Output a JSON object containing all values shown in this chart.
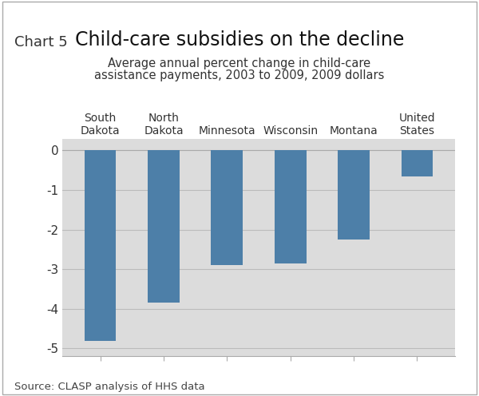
{
  "categories": [
    "South\nDakota",
    "North\nDakota",
    "Minnesota",
    "Wisconsin",
    "Montana",
    "United\nStates"
  ],
  "values": [
    -4.8,
    -3.85,
    -2.9,
    -2.85,
    -2.25,
    -0.65
  ],
  "bar_color": "#4d7fa8",
  "title": "Child-care subsidies on the decline",
  "chart_label": "Chart 5",
  "subtitle1": "Average annual percent change in child-care",
  "subtitle2": "assistance payments, 2003 to 2009, 2009 dollars",
  "source": "Source: CLASP analysis of HHS data",
  "ylim": [
    -5.2,
    0.3
  ],
  "yticks": [
    0,
    -1,
    -2,
    -3,
    -4,
    -5
  ],
  "bg_color": "#dcdcdc",
  "outer_bg": "#ffffff",
  "grid_color": "#bbbbbb",
  "bar_width": 0.5,
  "title_fontsize": 17,
  "chart_label_fontsize": 13,
  "subtitle_fontsize": 10.5,
  "tick_fontsize": 11,
  "source_fontsize": 9.5,
  "cat_fontsize": 10
}
